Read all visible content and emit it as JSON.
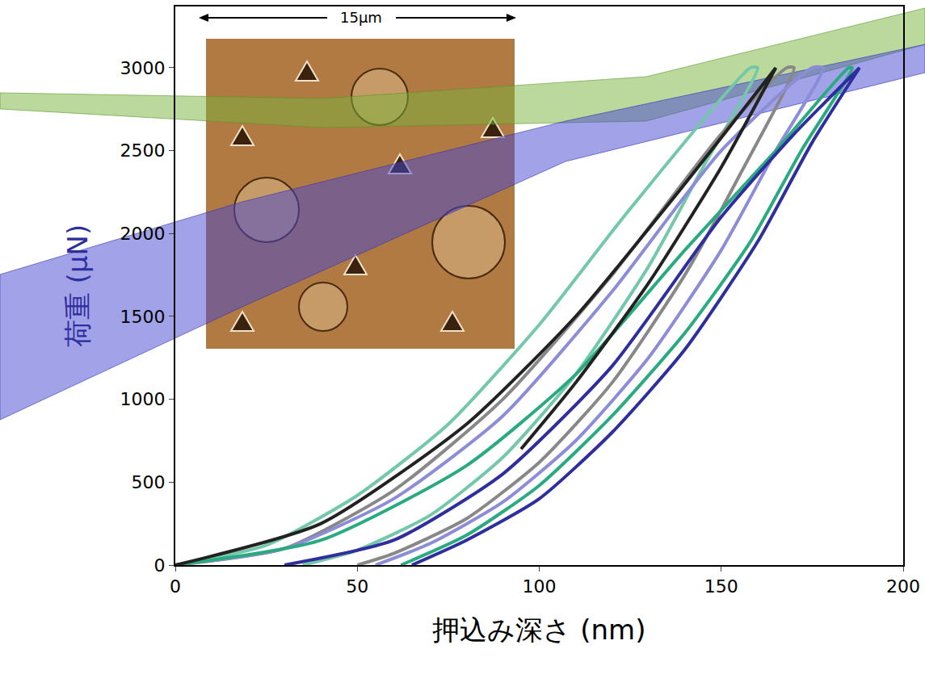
{
  "chart_data": {
    "type": "line",
    "x_label": "押込み深さ (nm)",
    "y_label": "荷重 (μN)",
    "xlim": [
      0,
      200
    ],
    "xticks": [
      0,
      50,
      100,
      150,
      200
    ],
    "ylim": [
      0,
      3370
    ],
    "yticks": [
      0,
      500,
      1000,
      1500,
      2000,
      2500,
      3000
    ],
    "grid": false,
    "annotations": [
      {
        "text": "15μm"
      }
    ],
    "series": [
      {
        "color": "#72c8a8",
        "x": [
          0,
          25,
          50,
          75,
          100,
          125,
          158,
          160,
          145,
          130,
          110,
          90,
          70,
          50,
          35
        ],
        "values": [
          0,
          120,
          420,
          850,
          1450,
          2150,
          3000,
          3000,
          2400,
          1800,
          1150,
          650,
          300,
          90,
          0
        ]
      },
      {
        "color": "#888888",
        "x": [
          0,
          30,
          60,
          90,
          120,
          150,
          168,
          170,
          155,
          140,
          120,
          100,
          80,
          60,
          50
        ],
        "values": [
          0,
          100,
          450,
          1000,
          1750,
          2600,
          3000,
          3000,
          2350,
          1750,
          1100,
          620,
          280,
          70,
          0
        ]
      },
      {
        "color": "#8c8cd8",
        "x": [
          0,
          30,
          60,
          90,
          120,
          150,
          175,
          178,
          165,
          150,
          130,
          110,
          90,
          70,
          55
        ],
        "values": [
          0,
          100,
          400,
          900,
          1650,
          2500,
          3000,
          3000,
          2500,
          1900,
          1250,
          750,
          380,
          130,
          0
        ]
      },
      {
        "color": "#2aaa80",
        "x": [
          0,
          40,
          80,
          110,
          140,
          165,
          185,
          186,
          172,
          158,
          140,
          120,
          100,
          80,
          62
        ],
        "values": [
          0,
          150,
          600,
          1150,
          1900,
          2500,
          3000,
          3000,
          2500,
          1950,
          1400,
          900,
          480,
          180,
          0
        ]
      },
      {
        "color": "#2e2e9e",
        "x": [
          30,
          60,
          90,
          120,
          150,
          170,
          188,
          188,
          175,
          160,
          140,
          120,
          100,
          80,
          65
        ],
        "values": [
          0,
          150,
          550,
          1200,
          2100,
          2600,
          3000,
          3000,
          2550,
          1950,
          1300,
          800,
          400,
          150,
          0
        ]
      },
      {
        "color": "#222222",
        "x": [
          0,
          40,
          80,
          110,
          140,
          165,
          165,
          150,
          130,
          110,
          95
        ],
        "values": [
          0,
          250,
          850,
          1500,
          2300,
          3000,
          3000,
          2400,
          1700,
          1100,
          700
        ]
      }
    ]
  }
}
